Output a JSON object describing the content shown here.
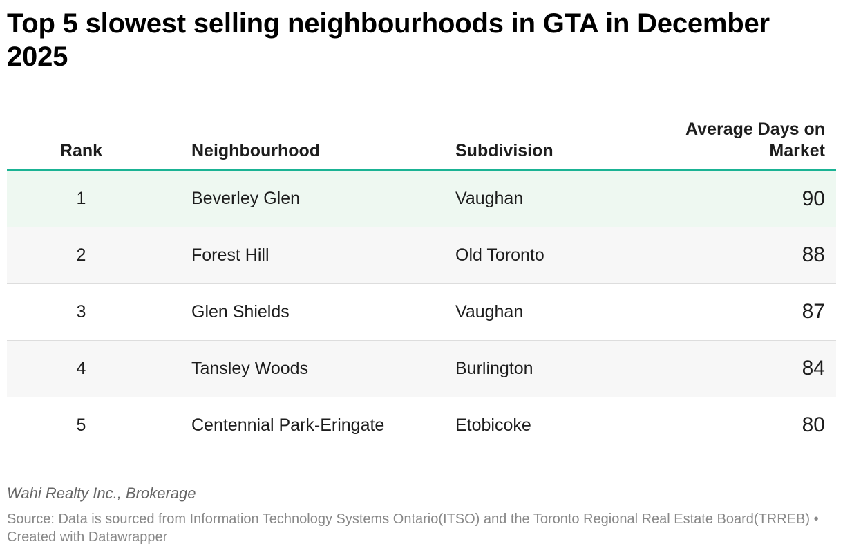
{
  "chart_data": {
    "type": "table",
    "title": "Top 5 slowest selling neighbourhoods in GTA in December 2025",
    "columns": [
      "Rank",
      "Neighbourhood",
      "Subdivision",
      "Average Days on Market"
    ],
    "rows": [
      {
        "rank": "1",
        "neighbourhood": "Beverley Glen",
        "subdivision": "Vaughan",
        "days": "90"
      },
      {
        "rank": "2",
        "neighbourhood": "Forest Hill",
        "subdivision": "Old Toronto",
        "days": "88"
      },
      {
        "rank": "3",
        "neighbourhood": "Glen Shields",
        "subdivision": "Vaughan",
        "days": "87"
      },
      {
        "rank": "4",
        "neighbourhood": "Tansley Woods",
        "subdivision": "Burlington",
        "days": "84"
      },
      {
        "rank": "5",
        "neighbourhood": "Centennial Park-Eringate",
        "subdivision": "Etobicoke",
        "days": "80"
      }
    ],
    "byline": "Wahi Realty Inc., Brokerage",
    "source": "Source: Data is sourced from Information Technology Systems Ontario(ITSO) and the Toronto Regional Real Estate Board(TRREB) • Created with Datawrapper",
    "colors": {
      "header_rule": "#1ab394",
      "highlight_row": "#eef8f1",
      "striped_row": "#f7f7f7"
    }
  }
}
